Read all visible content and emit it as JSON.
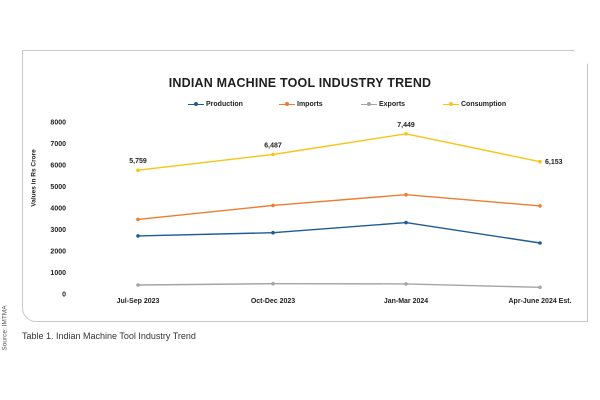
{
  "caption": "Table 1. Indian Machine Tool Industry Trend",
  "source": "Source: IMTMA",
  "chart_data": {
    "type": "line",
    "title": "INDIAN MACHINE TOOL INDUSTRY TREND",
    "xlabel": "",
    "ylabel": "Values in Rs Crore",
    "categories": [
      "Jul-Sep 2023",
      "Oct-Dec 2023",
      "Jan-Mar 2024",
      "Apr-June 2024 Est."
    ],
    "ylim": [
      0,
      8000
    ],
    "yticks": [
      0,
      1000,
      2000,
      3000,
      4000,
      5000,
      6000,
      7000,
      8000
    ],
    "ytick_labels": [
      "0",
      "1000",
      "2000",
      "3000",
      "4000",
      "5000",
      "6000",
      "7000",
      "8000"
    ],
    "grid": false,
    "legend_position": "top",
    "series": [
      {
        "name": "Production",
        "color": "#1f5b96",
        "values": [
          2700,
          2850,
          3320,
          2370
        ]
      },
      {
        "name": "Imports",
        "color": "#ed7d31",
        "values": [
          3470,
          4120,
          4620,
          4100
        ]
      },
      {
        "name": "Exports",
        "color": "#a5a5a5",
        "values": [
          420,
          480,
          470,
          310
        ]
      },
      {
        "name": "Consumption",
        "color": "#f5c518",
        "values": [
          5759,
          6487,
          7449,
          6153
        ],
        "data_labels": [
          "5,759",
          "6,487",
          "7,449",
          "6,153"
        ]
      }
    ]
  }
}
